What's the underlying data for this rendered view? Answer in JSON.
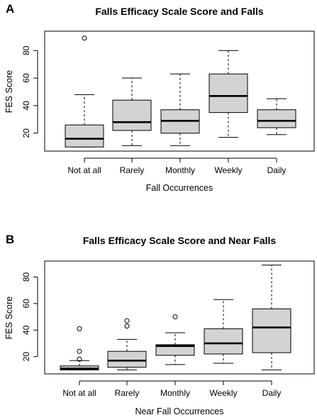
{
  "chart_data": [
    {
      "type": "box",
      "panel": "A",
      "title": "Falls Efficacy Scale Score and Falls",
      "xlabel": "Fall Occurrences",
      "ylabel": "FES Score",
      "ylim": [
        7,
        94
      ],
      "yticks": [
        20,
        40,
        60,
        80
      ],
      "categories": [
        "Not at all",
        "Rarely",
        "Monthly",
        "Weekly",
        "Daily"
      ],
      "boxes": [
        {
          "whisker_low": 10,
          "q1": 10,
          "median": 16,
          "q3": 26,
          "whisker_high": 48,
          "outliers": [
            89
          ]
        },
        {
          "whisker_low": 11,
          "q1": 22,
          "median": 28,
          "q3": 44,
          "whisker_high": 60,
          "outliers": []
        },
        {
          "whisker_low": 11,
          "q1": 20,
          "median": 29,
          "q3": 37,
          "whisker_high": 63,
          "outliers": []
        },
        {
          "whisker_low": 17,
          "q1": 35,
          "median": 47,
          "q3": 63,
          "whisker_high": 80,
          "outliers": []
        },
        {
          "whisker_low": 19,
          "q1": 24,
          "median": 29,
          "q3": 37,
          "whisker_high": 45,
          "outliers": []
        }
      ],
      "grid": false,
      "colors": {
        "box_fill": "#d3d3d3",
        "line": "#000000"
      }
    },
    {
      "type": "box",
      "panel": "B",
      "title": "Falls Efficacy Scale Score and Near Falls",
      "xlabel": "Near Fall Occurrences",
      "ylabel": "FES Score",
      "ylim": [
        7,
        92
      ],
      "yticks": [
        20,
        40,
        60,
        80
      ],
      "categories": [
        "Not at all",
        "Rarely",
        "Monthly",
        "Weekly",
        "Daily"
      ],
      "boxes": [
        {
          "whisker_low": 10,
          "q1": 10,
          "median": 11,
          "q3": 13,
          "whisker_high": 17,
          "outliers": [
            41,
            24,
            18
          ]
        },
        {
          "whisker_low": 10,
          "q1": 12,
          "median": 17,
          "q3": 24,
          "whisker_high": 33,
          "outliers": [
            47,
            43
          ]
        },
        {
          "whisker_low": 14,
          "q1": 21,
          "median": 28,
          "q3": 29,
          "whisker_high": 38,
          "outliers": [
            50
          ]
        },
        {
          "whisker_low": 15,
          "q1": 22,
          "median": 30,
          "q3": 41,
          "whisker_high": 63,
          "outliers": []
        },
        {
          "whisker_low": 10,
          "q1": 23,
          "median": 42,
          "q3": 56,
          "whisker_high": 89,
          "outliers": []
        }
      ],
      "grid": false,
      "colors": {
        "box_fill": "#d3d3d3",
        "line": "#000000"
      }
    }
  ]
}
